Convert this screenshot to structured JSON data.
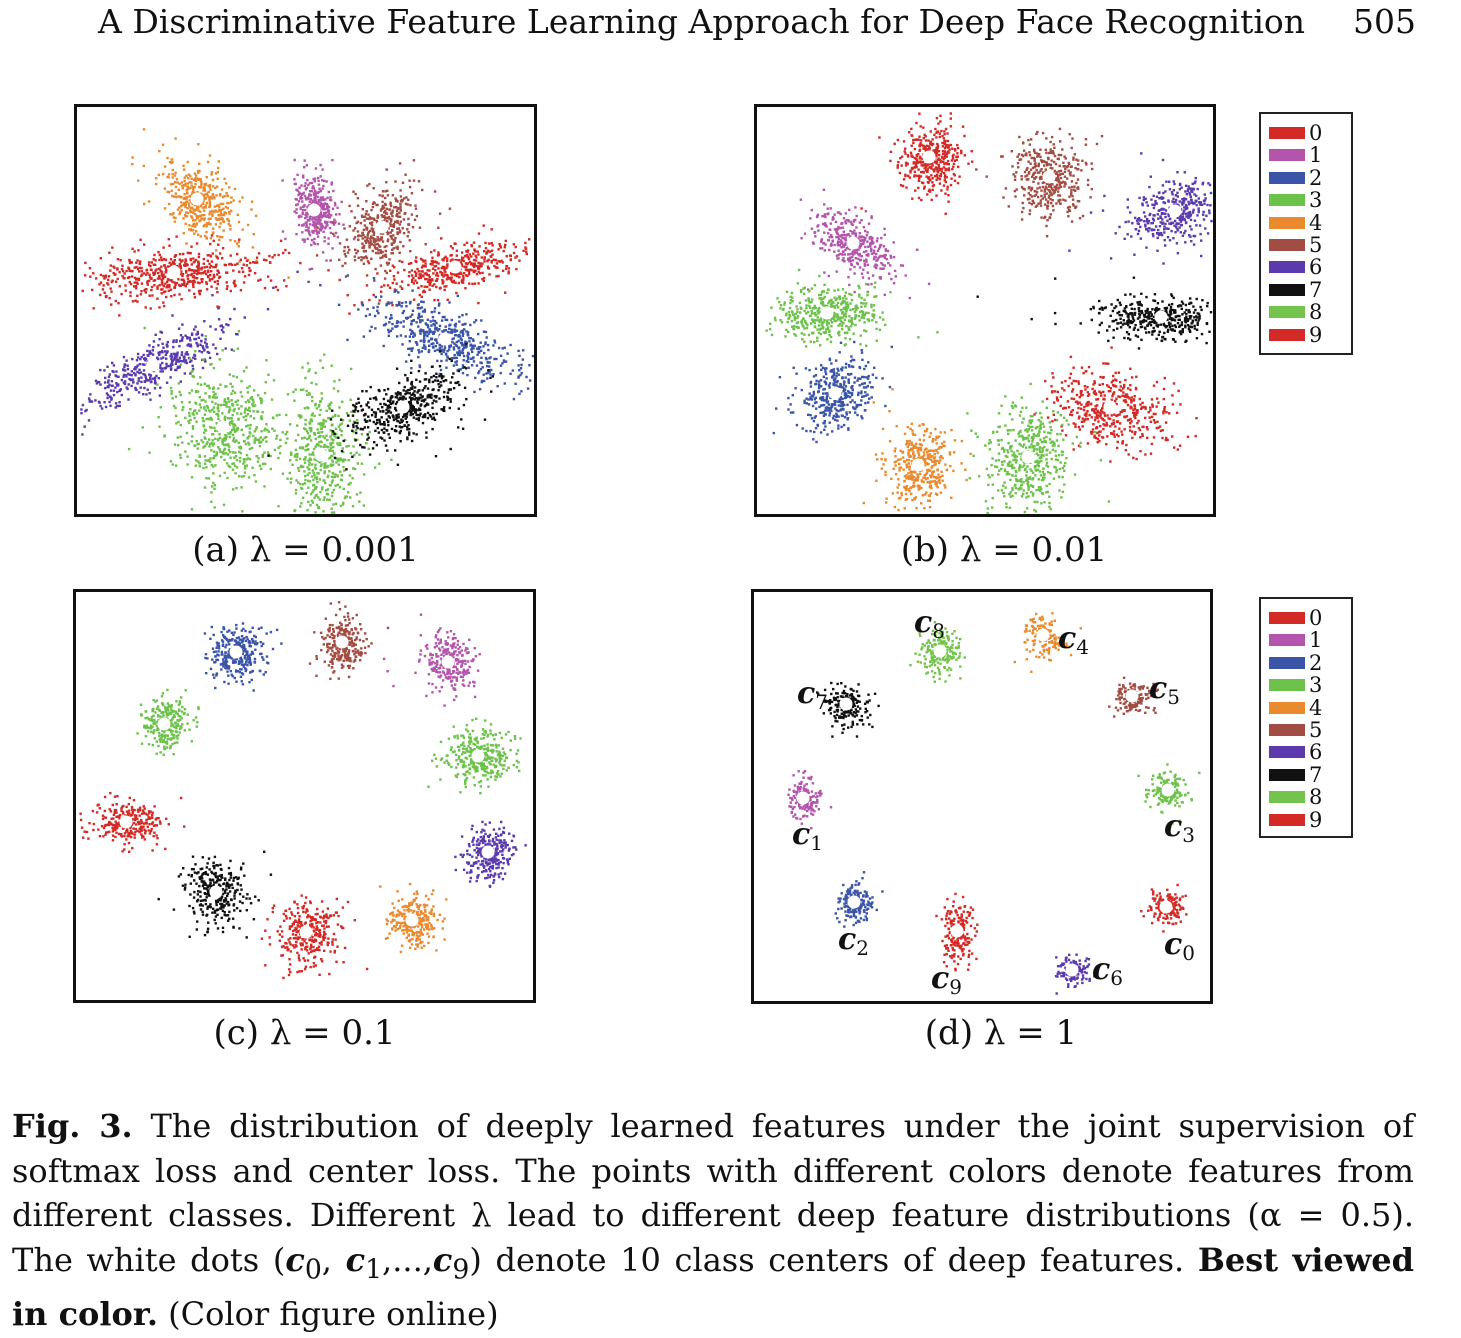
{
  "header": {
    "title": "A Discriminative Feature Learning Approach for Deep Face Recognition",
    "page_number": "505"
  },
  "colors": {
    "0": "#d42a26",
    "1": "#b455ad",
    "2": "#3a54a8",
    "3": "#6cc24a",
    "4": "#ea8a2f",
    "5": "#a24d43",
    "6": "#5a3aad",
    "7": "#111111",
    "8": "#73c34d",
    "9": "#d42a26"
  },
  "legends": [
    {
      "entries": [
        "0",
        "1",
        "2",
        "3",
        "4",
        "5",
        "6",
        "7",
        "8",
        "9"
      ]
    },
    {
      "entries": [
        "0",
        "1",
        "2",
        "3",
        "4",
        "5",
        "6",
        "7",
        "8",
        "9"
      ]
    }
  ],
  "panels": [
    {
      "caption": "(a)  λ = 0.001"
    },
    {
      "caption": "(b)  λ = 0.01"
    },
    {
      "caption": "(c)  λ = 0.1"
    },
    {
      "caption": "(d)  λ = 1"
    }
  ],
  "center_labels": {
    "c0": {
      "base": "c",
      "sub": "0"
    },
    "c1": {
      "base": "c",
      "sub": "1"
    },
    "c2": {
      "base": "c",
      "sub": "2"
    },
    "c3": {
      "base": "c",
      "sub": "3"
    },
    "c4": {
      "base": "c",
      "sub": "4"
    },
    "c5": {
      "base": "c",
      "sub": "5"
    },
    "c6": {
      "base": "c",
      "sub": "6"
    },
    "c7": {
      "base": "c",
      "sub": "7"
    },
    "c8": {
      "base": "c",
      "sub": "8"
    },
    "c9": {
      "base": "c",
      "sub": "9"
    }
  },
  "caption": {
    "label": "Fig. 3.",
    "text1": " The distribution of deeply learned features under the joint supervision of softmax loss and center loss. The points with different colors denote features from different classes. Different λ lead to different deep feature distributions (α = 0.5). The white dots (",
    "centers": "c",
    "sub0": "0",
    "sep1": ", ",
    "sub1": "1",
    "sep2": ",...,",
    "sub9": "9",
    "text2": ") denote 10 class centers of deep features. ",
    "bold": "Best viewed in color.",
    "text3": " (Color figure online)"
  }
}
